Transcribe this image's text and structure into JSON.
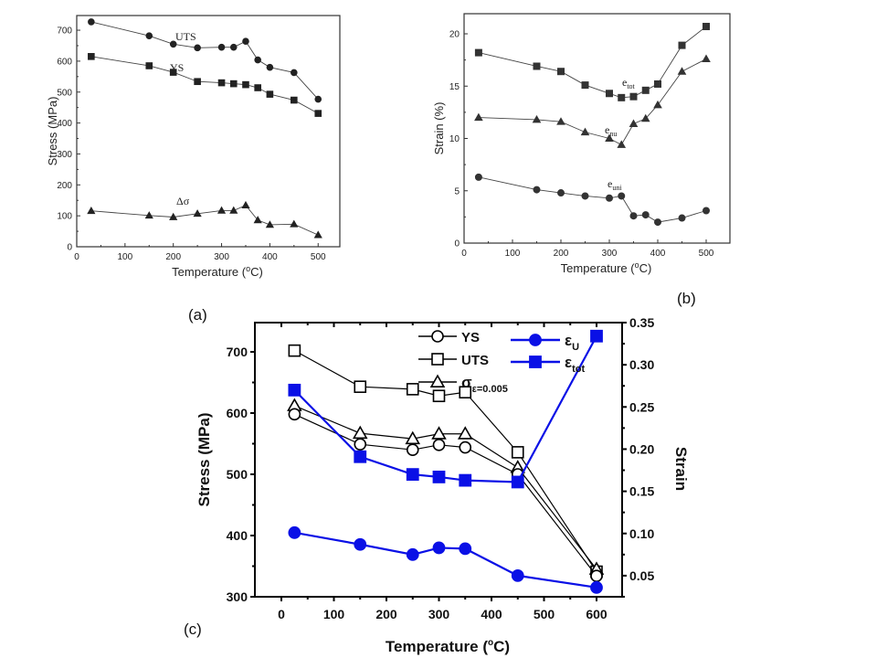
{
  "panels": {
    "a_label": "(a)",
    "b_label": "(b)",
    "c_label": "(c)"
  },
  "chart_data": [
    {
      "id": "a",
      "type": "line",
      "title": "",
      "xlabel": "Temperature (°C)",
      "ylabel": "Stress (MPa)",
      "xlim": [
        0,
        550
      ],
      "ylim": [
        0,
        750
      ],
      "xticks": [
        0,
        100,
        200,
        300,
        400,
        500
      ],
      "yticks": [
        0,
        100,
        200,
        300,
        400,
        500,
        600,
        700
      ],
      "grid": false,
      "x": [
        30,
        150,
        200,
        250,
        300,
        325,
        350,
        375,
        400,
        450,
        500
      ],
      "series": [
        {
          "name": "UTS",
          "marker": "circle",
          "color": "#222222",
          "values": [
            727,
            682,
            655,
            643,
            645,
            645,
            664,
            604,
            580,
            563,
            477
          ]
        },
        {
          "name": "YS",
          "marker": "square",
          "color": "#222222",
          "values": [
            615,
            585,
            564,
            534,
            530,
            527,
            524,
            514,
            493,
            474,
            431
          ]
        },
        {
          "name": "Δσ",
          "marker": "triangle",
          "color": "#222222",
          "values": [
            116,
            101,
            96,
            107,
            117,
            117,
            134,
            86,
            71,
            73,
            38
          ]
        }
      ],
      "annotations": [
        {
          "text": "UTS",
          "near": "UTS"
        },
        {
          "text": "YS",
          "near": "YS"
        },
        {
          "text": "Δσ",
          "near": "Δσ"
        }
      ]
    },
    {
      "id": "b",
      "type": "line",
      "title": "",
      "xlabel": "Temperature (°C)",
      "ylabel": "Strain (%)",
      "xlim": [
        0,
        550
      ],
      "ylim": [
        0,
        22
      ],
      "xticks": [
        0,
        100,
        200,
        300,
        400,
        500
      ],
      "yticks": [
        0,
        5,
        10,
        15,
        20
      ],
      "grid": false,
      "x": [
        30,
        150,
        200,
        250,
        300,
        325,
        350,
        375,
        400,
        450,
        500
      ],
      "series": [
        {
          "name": "e_tot",
          "marker": "square",
          "color": "#333333",
          "values": [
            18.2,
            16.9,
            16.4,
            15.1,
            14.3,
            13.9,
            14.0,
            14.6,
            15.2,
            18.9,
            20.7
          ]
        },
        {
          "name": "e_nu",
          "marker": "triangle",
          "color": "#333333",
          "values": [
            12.0,
            11.8,
            11.6,
            10.6,
            10.0,
            9.4,
            11.4,
            11.9,
            13.2,
            16.4,
            17.6
          ]
        },
        {
          "name": "e_uni",
          "marker": "circle",
          "color": "#333333",
          "values": [
            6.3,
            5.1,
            4.8,
            4.5,
            4.3,
            4.5,
            2.6,
            2.7,
            2.0,
            2.4,
            3.1
          ]
        }
      ],
      "annotations": [
        {
          "base": "e",
          "sub": "tot"
        },
        {
          "base": "e",
          "sub": "nu"
        },
        {
          "base": "e",
          "sub": "uni"
        }
      ]
    },
    {
      "id": "c",
      "type": "line",
      "title": "",
      "xlabel": "Temperature (°C)",
      "ylabel": "Stress (MPa)",
      "y2label": "Strain",
      "xlim": [
        -50,
        650
      ],
      "ylim": [
        300,
        750
      ],
      "y2lim": [
        0.025,
        0.35
      ],
      "xticks": [
        0,
        100,
        200,
        300,
        400,
        500,
        600
      ],
      "yticks": [
        300,
        400,
        500,
        600,
        700
      ],
      "y2ticks": [
        "0.05",
        "0.10",
        "0.15",
        "0.20",
        "0.25",
        "0.30",
        "0.35"
      ],
      "grid": false,
      "legend_position": "top",
      "x": [
        25,
        150,
        250,
        300,
        350,
        450,
        600
      ],
      "series": [
        {
          "name": "YS",
          "axis": "left",
          "marker": "circle-open",
          "color": "#000000",
          "values": [
            598,
            549,
            540,
            548,
            544,
            500,
            334
          ]
        },
        {
          "name": "UTS",
          "axis": "left",
          "marker": "square-open",
          "color": "#000000",
          "values": [
            702,
            643,
            639,
            628,
            634,
            536,
            341
          ]
        },
        {
          "name": "σ ε=0.005",
          "axis": "left",
          "marker": "triangle-open",
          "color": "#000000",
          "values": [
            612,
            567,
            558,
            566,
            566,
            511,
            345
          ]
        },
        {
          "name": "ε U",
          "axis": "right",
          "marker": "circle-filled",
          "color": "#0a10e6",
          "values": [
            0.101,
            0.087,
            0.075,
            0.083,
            0.082,
            0.05,
            0.036
          ]
        },
        {
          "name": "ε tot",
          "axis": "right",
          "marker": "square-filled",
          "color": "#0a10e6",
          "values": [
            0.27,
            0.191,
            0.17,
            0.167,
            0.163,
            0.161,
            0.334
          ]
        }
      ],
      "legend": [
        {
          "label": "YS",
          "marker": "circle-open"
        },
        {
          "label": "UTS",
          "marker": "square-open"
        },
        {
          "label": "σ",
          "sub": "ε=0.005",
          "marker": "triangle-open"
        },
        {
          "label": "ε",
          "sub": "U",
          "marker": "circle-filled"
        },
        {
          "label": "ε",
          "sub": "tot",
          "marker": "square-filled"
        }
      ]
    }
  ]
}
